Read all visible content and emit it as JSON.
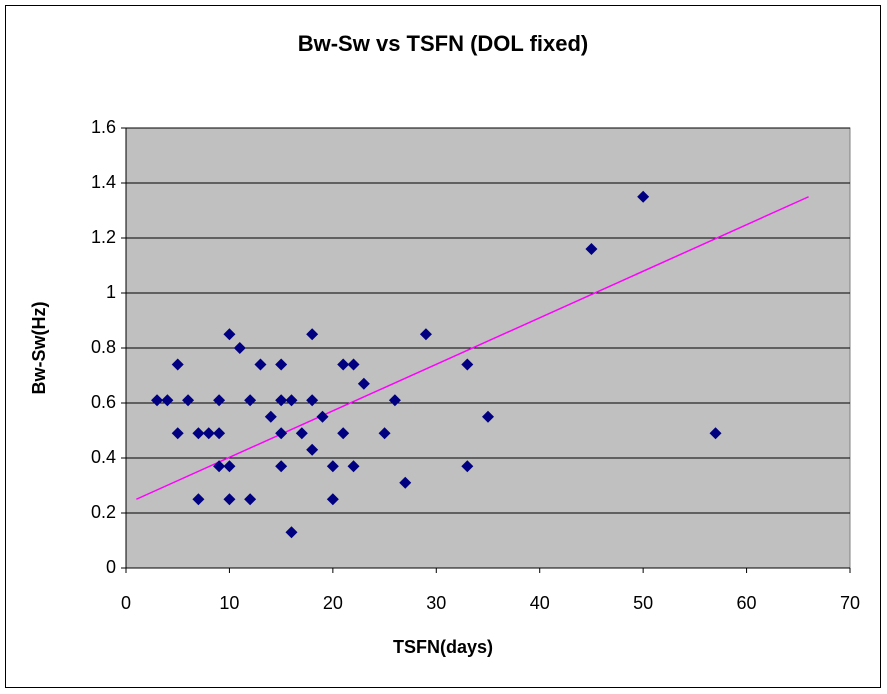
{
  "chart_data": {
    "type": "scatter",
    "title": "Bw-Sw vs TSFN (DOL fixed)",
    "x_label": "TSFN(days)",
    "y_label": "Bw-Sw(Hz)",
    "xlim": [
      0,
      70
    ],
    "xticks": [
      0,
      10,
      20,
      30,
      40,
      50,
      60,
      70
    ],
    "ylim": [
      0,
      1.6
    ],
    "yticks": [
      0,
      0.2,
      0.4,
      0.6,
      0.8,
      1,
      1.2,
      1.4,
      1.6
    ],
    "grid": true,
    "plot_background": "#c0c0c0",
    "series": [
      {
        "color": "#000080",
        "x": [
          3,
          4,
          5,
          5,
          6,
          7,
          7,
          8,
          9,
          9,
          9,
          10,
          10,
          10,
          11,
          12,
          12,
          13,
          14,
          15,
          15,
          15,
          15,
          16,
          16,
          17,
          18,
          18,
          18,
          19,
          20,
          20,
          21,
          21,
          22,
          22,
          23,
          25,
          26,
          27,
          29,
          33,
          33,
          35,
          45,
          50,
          57
        ],
        "values": [
          0.61,
          0.61,
          0.74,
          0.49,
          0.61,
          0.49,
          0.25,
          0.49,
          0.61,
          0.49,
          0.37,
          0.85,
          0.37,
          0.25,
          0.8,
          0.61,
          0.25,
          0.74,
          0.55,
          0.74,
          0.61,
          0.49,
          0.37,
          0.61,
          0.13,
          0.49,
          0.85,
          0.61,
          0.43,
          0.55,
          0.37,
          0.25,
          0.74,
          0.49,
          0.74,
          0.37,
          0.67,
          0.49,
          0.61,
          0.31,
          0.85,
          0.74,
          0.37,
          0.55,
          1.16,
          1.35,
          0.49
        ]
      }
    ],
    "trendline": {
      "x": [
        1,
        66
      ],
      "values": [
        0.25,
        1.35
      ],
      "color": "#ff00ff"
    }
  }
}
